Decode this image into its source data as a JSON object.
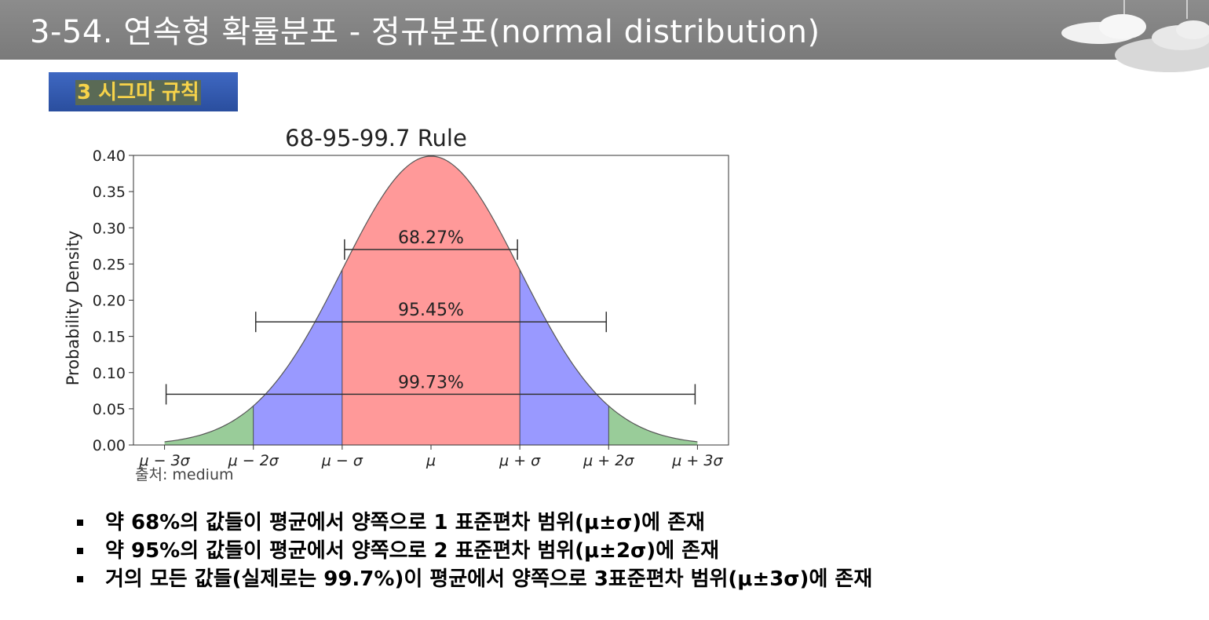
{
  "header": {
    "title": "3-54. 연속형 확률분포 - 정규분포(normal distribution)"
  },
  "section": {
    "label": "3 시그마 규칙"
  },
  "chart_data": {
    "type": "area",
    "title": "68-95-99.7 Rule",
    "xlabel": "",
    "ylabel": "Probability Density",
    "xlim": [
      -3.35,
      3.35
    ],
    "ylim": [
      0,
      0.4
    ],
    "yticks": [
      0.0,
      0.05,
      0.1,
      0.15,
      0.2,
      0.25,
      0.3,
      0.35,
      0.4
    ],
    "ytick_labels": [
      "0.00",
      "0.05",
      "0.10",
      "0.15",
      "0.20",
      "0.25",
      "0.30",
      "0.35",
      "0.40"
    ],
    "xticks": [
      -3,
      -2,
      -1,
      0,
      1,
      2,
      3
    ],
    "xtick_labels": [
      "μ − 3σ",
      "μ − 2σ",
      "μ − σ",
      "μ",
      "μ + σ",
      "μ + 2σ",
      "μ + 3σ"
    ],
    "curve": "standard normal pdf",
    "regions": [
      {
        "from": -1,
        "to": 1,
        "color": "#ff9999"
      },
      {
        "from": -2,
        "to": -1,
        "color": "#9999ff"
      },
      {
        "from": 1,
        "to": 2,
        "color": "#9999ff"
      },
      {
        "from": -3,
        "to": -2,
        "color": "#99cc99"
      },
      {
        "from": 2,
        "to": 3,
        "color": "#99cc99"
      }
    ],
    "intervals": [
      {
        "label": "68.27%",
        "from": -1,
        "to": 1,
        "y": 0.27
      },
      {
        "label": "95.45%",
        "from": -2,
        "to": 2,
        "y": 0.17
      },
      {
        "label": "99.73%",
        "from": -3,
        "to": 3,
        "y": 0.07
      }
    ]
  },
  "source": "출처: medium",
  "bullets": [
    "약 68%의 값들이 평균에서 양쪽으로 1 표준편차 범위(μ±σ)에 존재",
    "약 95%의 값들이 평균에서 양쪽으로 2 표준편차 범위(μ±2σ)에 존재",
    "거의 모든 값들(실제로는 99.7%)이 평균에서 양쪽으로 3표준편차 범위(μ±3σ)에 존재"
  ]
}
